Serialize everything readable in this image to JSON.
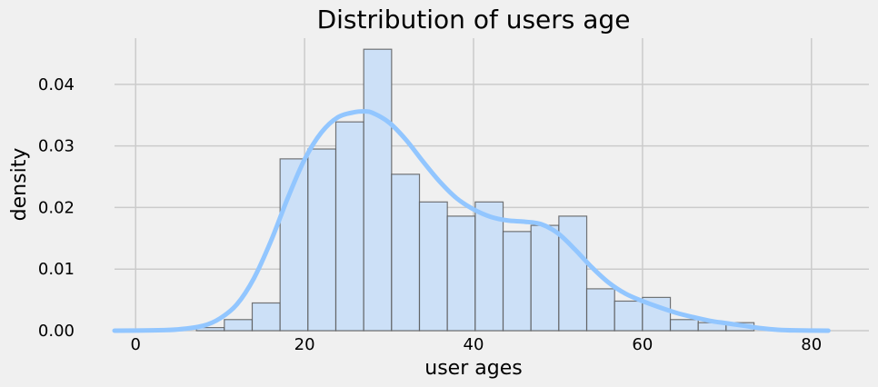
{
  "chart_data": {
    "type": "bar",
    "title": "Distribution of users age",
    "xlabel": "user ages",
    "ylabel": "density",
    "xlim": [
      -2.5,
      82.5
    ],
    "ylim": [
      0,
      0.0475
    ],
    "xticks": [
      0,
      20,
      40,
      60,
      80
    ],
    "yticks": [
      0.0,
      0.01,
      0.02,
      0.03,
      0.04
    ],
    "xtick_labels": [
      "0",
      "20",
      "40",
      "60",
      "80"
    ],
    "ytick_labels": [
      "0.00",
      "0.01",
      "0.02",
      "0.03",
      "0.04"
    ],
    "grid": true,
    "histogram": {
      "bin_edges": [
        7.2,
        10.5,
        13.8,
        17.1,
        20.4,
        23.7,
        27.0,
        30.3,
        33.6,
        36.9,
        40.2,
        43.5,
        46.8,
        50.1,
        53.4,
        56.7,
        60.0,
        63.3,
        66.6,
        69.9,
        73.2
      ],
      "density": [
        0.0005,
        0.0018,
        0.0045,
        0.0279,
        0.0295,
        0.0339,
        0.0457,
        0.0254,
        0.0209,
        0.0186,
        0.0209,
        0.0161,
        0.0171,
        0.0186,
        0.0068,
        0.0048,
        0.0054,
        0.0018,
        0.0013,
        0.0013
      ],
      "fill_color": "#cce0f7",
      "edge_color": "#555555"
    },
    "kde": {
      "x": [
        -2.5,
        2,
        5,
        8,
        10,
        12,
        14,
        16,
        18,
        20,
        22,
        24,
        26,
        27,
        28,
        30,
        32,
        34,
        36,
        38,
        40,
        42,
        44,
        46,
        48,
        50,
        52,
        54,
        56,
        58,
        60,
        62,
        64,
        66,
        68,
        70,
        72,
        74,
        76,
        78,
        82
      ],
      "y": [
        0.0,
        5e-05,
        0.0002,
        0.0008,
        0.002,
        0.0043,
        0.0085,
        0.0145,
        0.0215,
        0.0278,
        0.0322,
        0.0347,
        0.0355,
        0.0356,
        0.0354,
        0.0338,
        0.031,
        0.0275,
        0.0242,
        0.0215,
        0.0197,
        0.0185,
        0.0179,
        0.0177,
        0.0173,
        0.0158,
        0.0132,
        0.0103,
        0.0078,
        0.006,
        0.0048,
        0.0038,
        0.0029,
        0.0022,
        0.0016,
        0.0012,
        0.0008,
        0.0004,
        0.00015,
        5e-05,
        0.0
      ],
      "color": "#92c6ff"
    }
  }
}
